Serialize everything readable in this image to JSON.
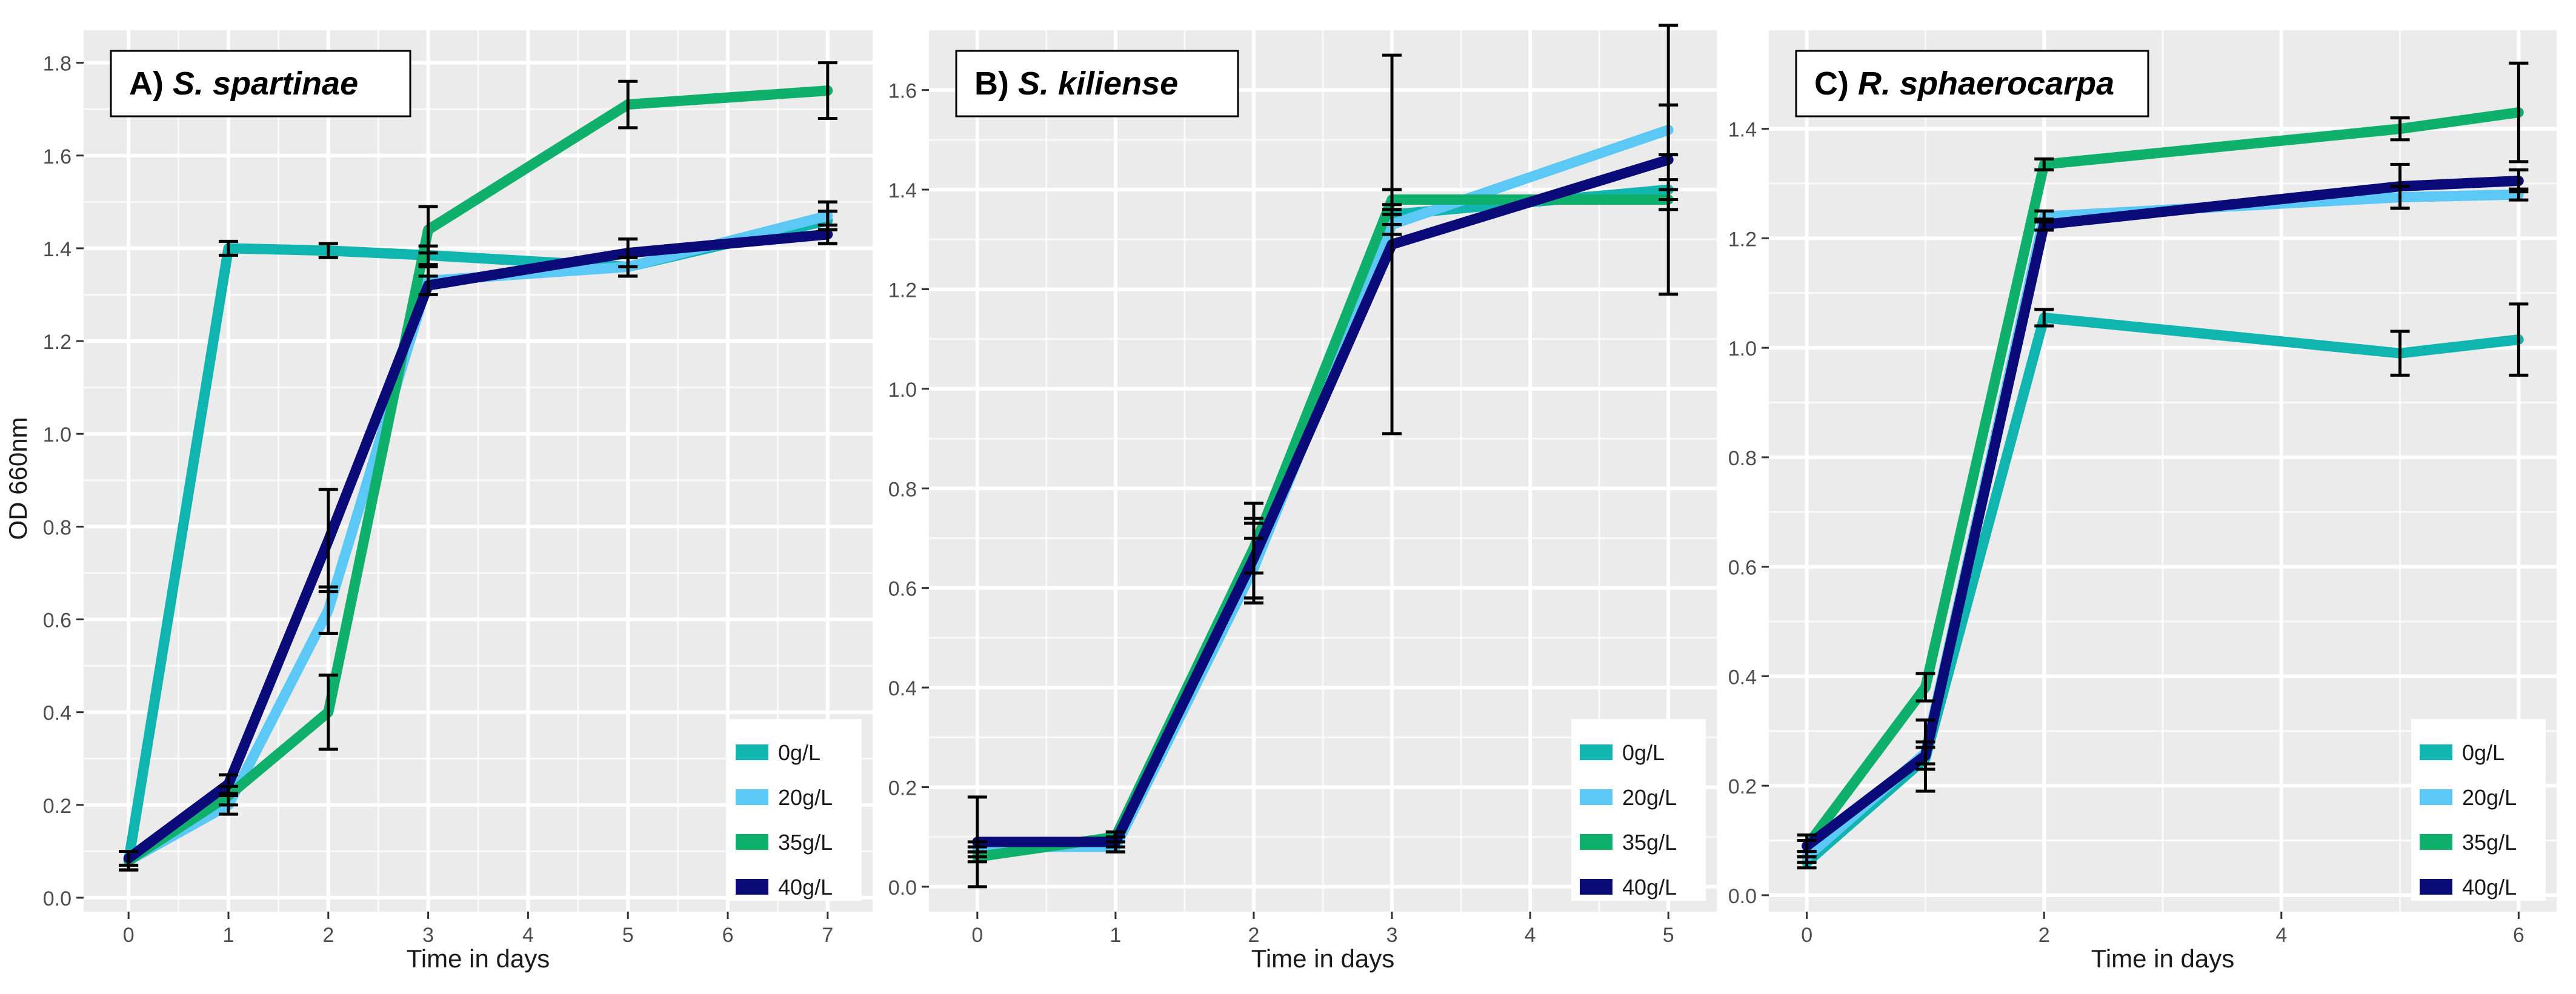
{
  "figure": {
    "ylabel": "OD 660nm",
    "xlabel": "Time in days"
  },
  "colors": {
    "0g/L": "#0fb5ae",
    "20g/L": "#5cc8f5",
    "35g/L": "#0fb06c",
    "40g/L": "#0a0a78",
    "panel_bg": "#ebebeb",
    "grid": "#ffffff",
    "error_bar": "#000000"
  },
  "chart_data": [
    {
      "type": "line",
      "panel": "A)",
      "title": "S. spartinae",
      "xlabel": "Time in days",
      "ylabel": "OD 660nm",
      "x": [
        0,
        1,
        2,
        3,
        5,
        7
      ],
      "xticks": [
        0,
        1,
        2,
        3,
        4,
        5,
        6,
        7
      ],
      "yticks": [
        "0.0",
        "0.2",
        "0.4",
        "0.6",
        "0.8",
        "1.0",
        "1.2",
        "1.4",
        "1.6",
        "1.8"
      ],
      "xlim": [
        -0.45,
        7.45
      ],
      "ylim": [
        -0.03,
        1.87
      ],
      "legend_position": "bottom-right",
      "series": [
        {
          "name": "0g/L",
          "values": [
            0.08,
            1.4,
            1.395,
            1.385,
            1.36,
            1.46
          ],
          "errors": [
            0.02,
            0.015,
            0.015,
            0.02,
            0.02,
            0.02
          ]
        },
        {
          "name": "20g/L",
          "values": [
            0.08,
            0.2,
            0.62,
            1.33,
            1.36,
            1.47
          ],
          "errors": [
            0.02,
            0.02,
            0.05,
            0.03,
            0.02,
            0.03
          ]
        },
        {
          "name": "35g/L",
          "values": [
            0.08,
            0.22,
            0.4,
            1.44,
            1.71,
            1.74
          ],
          "errors": [
            0.02,
            0.02,
            0.08,
            0.05,
            0.05,
            0.06
          ]
        },
        {
          "name": "40g/L",
          "values": [
            0.085,
            0.245,
            0.77,
            1.32,
            1.39,
            1.43
          ],
          "errors": [
            0.015,
            0.02,
            0.11,
            0.02,
            0.03,
            0.02
          ]
        }
      ]
    },
    {
      "type": "line",
      "panel": "B)",
      "title": "S. kiliense",
      "xlabel": "Time in days",
      "ylabel": "",
      "x": [
        0,
        1,
        2,
        3,
        5
      ],
      "xticks": [
        0,
        1,
        2,
        3,
        4,
        5
      ],
      "yticks": [
        "0.0",
        "0.2",
        "0.4",
        "0.6",
        "0.8",
        "1.0",
        "1.2",
        "1.4",
        "1.6"
      ],
      "xlim": [
        -0.35,
        5.35
      ],
      "ylim": [
        -0.05,
        1.72
      ],
      "legend_position": "bottom-right",
      "series": [
        {
          "name": "0g/L",
          "values": [
            0.07,
            0.09,
            0.67,
            1.35,
            1.4
          ],
          "errors": [
            0.01,
            0.01,
            0.1,
            0.02,
            0.02
          ]
        },
        {
          "name": "20g/L",
          "values": [
            0.08,
            0.08,
            0.64,
            1.33,
            1.52
          ],
          "errors": [
            0.01,
            0.01,
            0.06,
            0.02,
            0.05
          ]
        },
        {
          "name": "35g/L",
          "values": [
            0.06,
            0.1,
            0.68,
            1.38,
            1.38
          ],
          "errors": [
            0.01,
            0.01,
            0.05,
            0.02,
            0.02
          ]
        },
        {
          "name": "40g/L",
          "values": [
            0.09,
            0.09,
            0.66,
            1.29,
            1.46
          ],
          "errors": [
            0.09,
            0.02,
            0.08,
            0.38,
            0.27
          ]
        }
      ]
    },
    {
      "type": "line",
      "panel": "C)",
      "title": "R. sphaerocarpa",
      "xlabel": "Time in days",
      "ylabel": "",
      "x": [
        0,
        1,
        2,
        5,
        6
      ],
      "xticks": [
        0,
        2,
        4,
        6
      ],
      "yticks": [
        "0.0",
        "0.2",
        "0.4",
        "0.6",
        "0.8",
        "1.0",
        "1.2",
        "1.4"
      ],
      "xlim": [
        -0.32,
        6.32
      ],
      "ylim": [
        -0.03,
        1.58
      ],
      "legend_position": "bottom-right",
      "series": [
        {
          "name": "0g/L",
          "values": [
            0.06,
            0.25,
            1.055,
            0.99,
            1.015
          ],
          "errors": [
            0.01,
            0.02,
            0.015,
            0.04,
            0.065
          ]
        },
        {
          "name": "20g/L",
          "values": [
            0.07,
            0.26,
            1.24,
            1.275,
            1.28
          ],
          "errors": [
            0.01,
            0.02,
            0.01,
            0.02,
            0.01
          ]
        },
        {
          "name": "35g/L",
          "values": [
            0.09,
            0.38,
            1.335,
            1.4,
            1.43
          ],
          "errors": [
            0.01,
            0.025,
            0.01,
            0.02,
            0.09
          ]
        },
        {
          "name": "40g/L",
          "values": [
            0.09,
            0.255,
            1.225,
            1.295,
            1.305
          ],
          "errors": [
            0.02,
            0.065,
            0.01,
            0.04,
            0.02
          ]
        }
      ]
    }
  ]
}
